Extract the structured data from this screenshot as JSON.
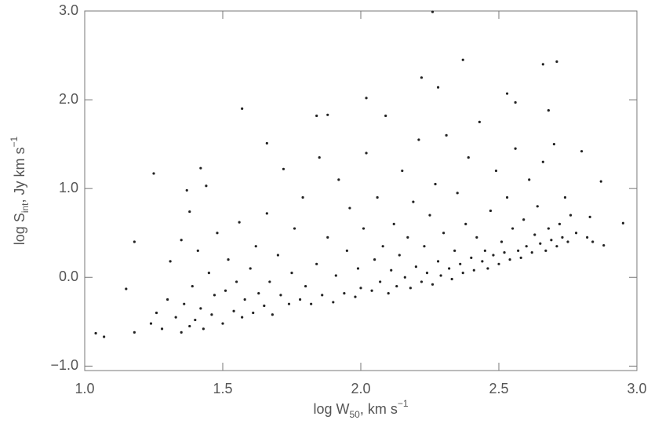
{
  "chart_data": {
    "type": "scatter",
    "xlabel": [
      "log W",
      "50",
      ", km s",
      "−1"
    ],
    "ylabel": [
      "log S",
      "int",
      ", Jy km s",
      "−1"
    ],
    "xlim": [
      1.0,
      3.0
    ],
    "ylim": [
      -1.05,
      3.0
    ],
    "xticks": [
      {
        "value": 1.0,
        "label": "1.0"
      },
      {
        "value": 1.5,
        "label": "1.5"
      },
      {
        "value": 2.0,
        "label": "2.0"
      },
      {
        "value": 2.5,
        "label": "2.5"
      },
      {
        "value": 3.0,
        "label": "3.0"
      }
    ],
    "yticks": [
      {
        "value": -1.0,
        "label": "−1.0"
      },
      {
        "value": 0.0,
        "label": "0.0"
      },
      {
        "value": 1.0,
        "label": "1.0"
      },
      {
        "value": 2.0,
        "label": "2.0"
      },
      {
        "value": 3.0,
        "label": "3.0"
      }
    ],
    "color": "#222222",
    "x": [
      1.04,
      1.07,
      1.15,
      1.18,
      1.18,
      1.25,
      1.42,
      1.44,
      1.57,
      1.66,
      1.84,
      1.88,
      2.02,
      2.22,
      2.28,
      2.26,
      2.37,
      2.66,
      2.71,
      2.53,
      2.56,
      2.68,
      2.95,
      2.87,
      2.88,
      1.24,
      1.26,
      1.28,
      1.3,
      1.31,
      1.33,
      1.35,
      1.35,
      1.36,
      1.37,
      1.38,
      1.38,
      1.39,
      1.4,
      1.41,
      1.42,
      1.43,
      1.45,
      1.46,
      1.47,
      1.48,
      1.5,
      1.51,
      1.52,
      1.54,
      1.55,
      1.56,
      1.57,
      1.58,
      1.6,
      1.61,
      1.62,
      1.63,
      1.65,
      1.66,
      1.67,
      1.68,
      1.7,
      1.71,
      1.72,
      1.74,
      1.75,
      1.76,
      1.78,
      1.79,
      1.8,
      1.82,
      1.84,
      1.85,
      1.86,
      1.88,
      1.9,
      1.91,
      1.92,
      1.94,
      1.95,
      1.96,
      1.98,
      1.99,
      2.0,
      2.01,
      2.02,
      2.04,
      2.05,
      2.06,
      2.07,
      2.08,
      2.09,
      2.1,
      2.11,
      2.12,
      2.13,
      2.14,
      2.15,
      2.16,
      2.17,
      2.18,
      2.19,
      2.2,
      2.21,
      2.22,
      2.23,
      2.24,
      2.25,
      2.26,
      2.27,
      2.28,
      2.29,
      2.3,
      2.31,
      2.32,
      2.33,
      2.34,
      2.35,
      2.36,
      2.37,
      2.38,
      2.39,
      2.4,
      2.41,
      2.42,
      2.43,
      2.44,
      2.45,
      2.46,
      2.47,
      2.48,
      2.49,
      2.5,
      2.51,
      2.52,
      2.53,
      2.54,
      2.55,
      2.56,
      2.57,
      2.58,
      2.59,
      2.6,
      2.61,
      2.62,
      2.63,
      2.64,
      2.65,
      2.66,
      2.67,
      2.68,
      2.69,
      2.7,
      2.71,
      2.72,
      2.73,
      2.74,
      2.75,
      2.76,
      2.78,
      2.8,
      2.82,
      2.83,
      2.84
    ],
    "y": [
      -0.63,
      -0.67,
      -0.13,
      0.4,
      -0.62,
      1.17,
      1.23,
      1.03,
      1.9,
      1.51,
      1.82,
      1.83,
      2.02,
      2.25,
      2.14,
      2.99,
      2.45,
      2.4,
      2.43,
      2.07,
      1.97,
      1.88,
      0.61,
      1.08,
      0.36,
      -0.52,
      -0.4,
      -0.58,
      -0.25,
      0.18,
      -0.45,
      -0.62,
      0.42,
      -0.3,
      0.98,
      -0.55,
      0.74,
      -0.1,
      -0.48,
      0.3,
      -0.35,
      -0.58,
      0.05,
      -0.42,
      -0.2,
      0.5,
      -0.52,
      -0.15,
      0.2,
      -0.38,
      -0.05,
      0.62,
      -0.45,
      -0.25,
      0.1,
      -0.4,
      0.35,
      -0.18,
      -0.32,
      0.72,
      -0.05,
      -0.42,
      0.25,
      -0.2,
      1.22,
      -0.3,
      0.05,
      0.55,
      -0.25,
      0.9,
      -0.1,
      -0.3,
      0.15,
      1.35,
      -0.2,
      0.45,
      -0.28,
      0.02,
      1.1,
      -0.18,
      0.3,
      0.78,
      -0.22,
      0.1,
      -0.12,
      0.55,
      1.4,
      -0.15,
      0.2,
      0.9,
      -0.05,
      0.35,
      1.82,
      -0.18,
      0.08,
      0.6,
      -0.1,
      0.25,
      1.2,
      0.0,
      0.45,
      -0.12,
      0.85,
      0.12,
      1.55,
      -0.05,
      0.35,
      0.05,
      0.7,
      -0.08,
      1.05,
      0.18,
      0.02,
      0.5,
      1.6,
      0.1,
      -0.02,
      0.3,
      0.95,
      0.15,
      0.05,
      0.6,
      1.35,
      0.22,
      0.08,
      0.45,
      1.75,
      0.18,
      0.3,
      0.1,
      0.75,
      0.25,
      1.2,
      0.15,
      0.4,
      0.28,
      0.9,
      0.2,
      0.55,
      1.45,
      0.3,
      0.22,
      0.65,
      0.35,
      1.1,
      0.28,
      0.48,
      0.8,
      0.38,
      1.3,
      0.3,
      0.55,
      0.42,
      1.5,
      0.35,
      0.6,
      0.45,
      0.9,
      0.4,
      0.7,
      0.5,
      1.42,
      0.45,
      0.68,
      0.4
    ]
  }
}
